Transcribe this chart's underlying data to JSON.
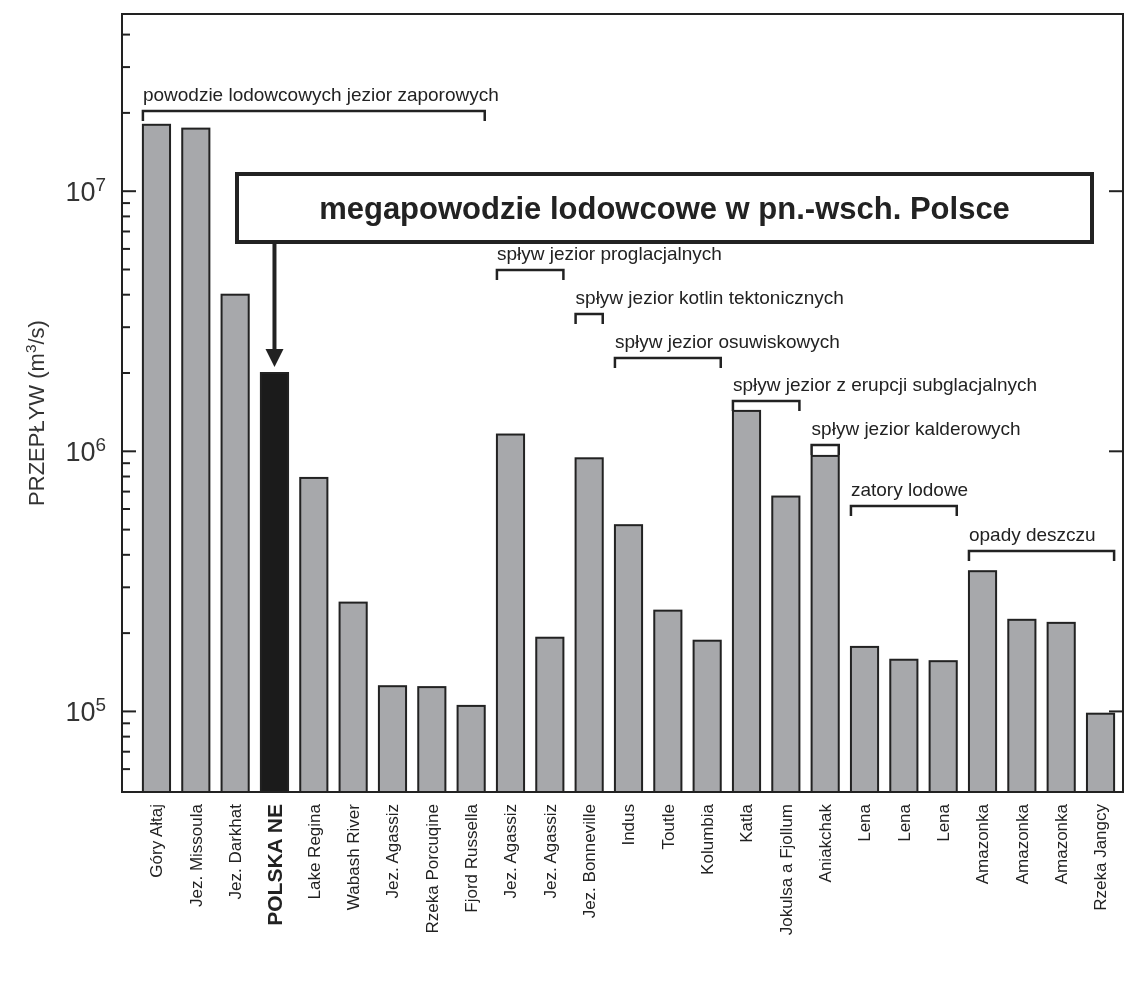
{
  "chart_data": {
    "type": "bar",
    "ylabel": "PRZEPŁYW (m$^{3}$/s)",
    "log": true,
    "categories": [
      "Góry Ałtaj",
      "Jez. Missoula",
      "Jez. Darkhat",
      "POLSKA NE",
      "Lake Regina",
      "Wabash River",
      "Jez. Agassiz",
      "Rzeka Porcuqine",
      "Fjord Russella",
      "Jez. Agassiz",
      "Jez. Agassiz",
      "Jez. Bonneville",
      "Indus",
      "Toutle",
      "Kolumbia",
      "Katla",
      "Jokulsa a Fjollum",
      "Aniakchak",
      "Lena",
      "Lena",
      "Lena",
      "Amazonka",
      "Amazonka",
      "Amazonka",
      "Rzeka Jangcy"
    ],
    "values": [
      18000000,
      17400000,
      4000000,
      2000000,
      790000,
      262000,
      125000,
      124000,
      105000,
      1160000,
      192000,
      940000,
      520000,
      244000,
      187000,
      1430000,
      670000,
      960000,
      177000,
      158000,
      156000,
      346000,
      225000,
      219000,
      98000
    ],
    "colors": [
      "#a7a8ab",
      "#a7a8ab",
      "#a7a8ab",
      "#1b1b1b",
      "#a7a8ab",
      "#a7a8ab",
      "#a7a8ab",
      "#a7a8ab",
      "#a7a8ab",
      "#a7a8ab",
      "#a7a8ab",
      "#a7a8ab",
      "#a7a8ab",
      "#a7a8ab",
      "#a7a8ab",
      "#a7a8ab",
      "#a7a8ab",
      "#a7a8ab",
      "#a7a8ab",
      "#a7a8ab",
      "#a7a8ab",
      "#a7a8ab",
      "#a7a8ab",
      "#a7a8ab",
      "#a7a8ab"
    ],
    "ylim": [
      49000,
      48000000
    ],
    "yticks": [
      {
        "value": 60000,
        "label": null
      },
      {
        "value": 70000,
        "label": null
      },
      {
        "value": 80000,
        "label": null
      },
      {
        "value": 90000,
        "label": null
      },
      {
        "value": 100000,
        "label": "10$^{5}$"
      },
      {
        "value": 200000,
        "label": null
      },
      {
        "value": 300000,
        "label": null
      },
      {
        "value": 400000,
        "label": null
      },
      {
        "value": 500000,
        "label": null
      },
      {
        "value": 600000,
        "label": null
      },
      {
        "value": 700000,
        "label": null
      },
      {
        "value": 800000,
        "label": null
      },
      {
        "value": 900000,
        "label": null
      },
      {
        "value": 1000000,
        "label": "10$^{6}$"
      },
      {
        "value": 2000000,
        "label": null
      },
      {
        "value": 3000000,
        "label": null
      },
      {
        "value": 4000000,
        "label": null
      },
      {
        "value": 5000000,
        "label": null
      },
      {
        "value": 6000000,
        "label": null
      },
      {
        "value": 7000000,
        "label": null
      },
      {
        "value": 8000000,
        "label": null
      },
      {
        "value": 9000000,
        "label": null
      },
      {
        "value": 10000000,
        "label": "10$^{7}$"
      },
      {
        "value": 20000000,
        "label": null
      },
      {
        "value": 30000000,
        "label": null
      },
      {
        "value": 40000000,
        "label": null
      }
    ],
    "annotations": [
      "megapowodzie lodowcowe w pn.-wsch. Polsce",
      "powodzie lodowcowych jezior zaporowych",
      "spływ jezior proglacjalnych",
      "spływ jezior kotlin tektonicznych",
      "spływ jezior osuwiskowych",
      "spływ jezior z erupcji subglacjalnych",
      "spływ jezior kalderowych",
      "zatory lodowe",
      "opady deszczu"
    ]
  }
}
